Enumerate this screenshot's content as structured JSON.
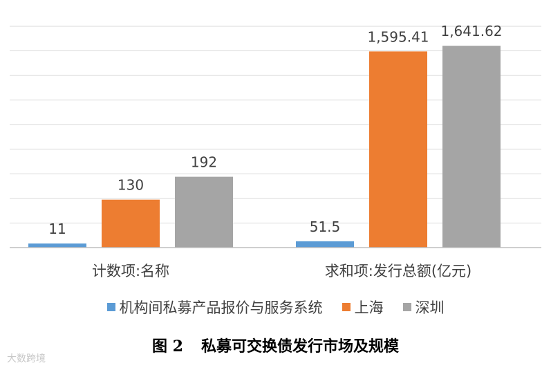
{
  "chart_data": {
    "type": "bar",
    "categories": [
      "计数项:名称",
      "求和项:发行总额(亿元)"
    ],
    "series": [
      {
        "name": "机构间私募产品报价与服务系统",
        "values": [
          11,
          51.5
        ],
        "labels": [
          "11",
          "51.5"
        ],
        "color": "#5b9bd5"
      },
      {
        "name": "上海",
        "values": [
          130,
          1595.41
        ],
        "labels": [
          "130",
          "1,595.41"
        ],
        "color": "#ed7d31"
      },
      {
        "name": "深圳",
        "values": [
          192,
          1641.62
        ],
        "labels": [
          "192",
          "1,641.62"
        ],
        "color": "#a5a5a5"
      }
    ],
    "category_scale_max": [
      600,
      1800
    ],
    "grid": true,
    "legend_position": "bottom"
  },
  "caption": {
    "figure_number": "图 2",
    "title": "私募可交换债发行市场及规模"
  },
  "watermark": "大数跨境"
}
